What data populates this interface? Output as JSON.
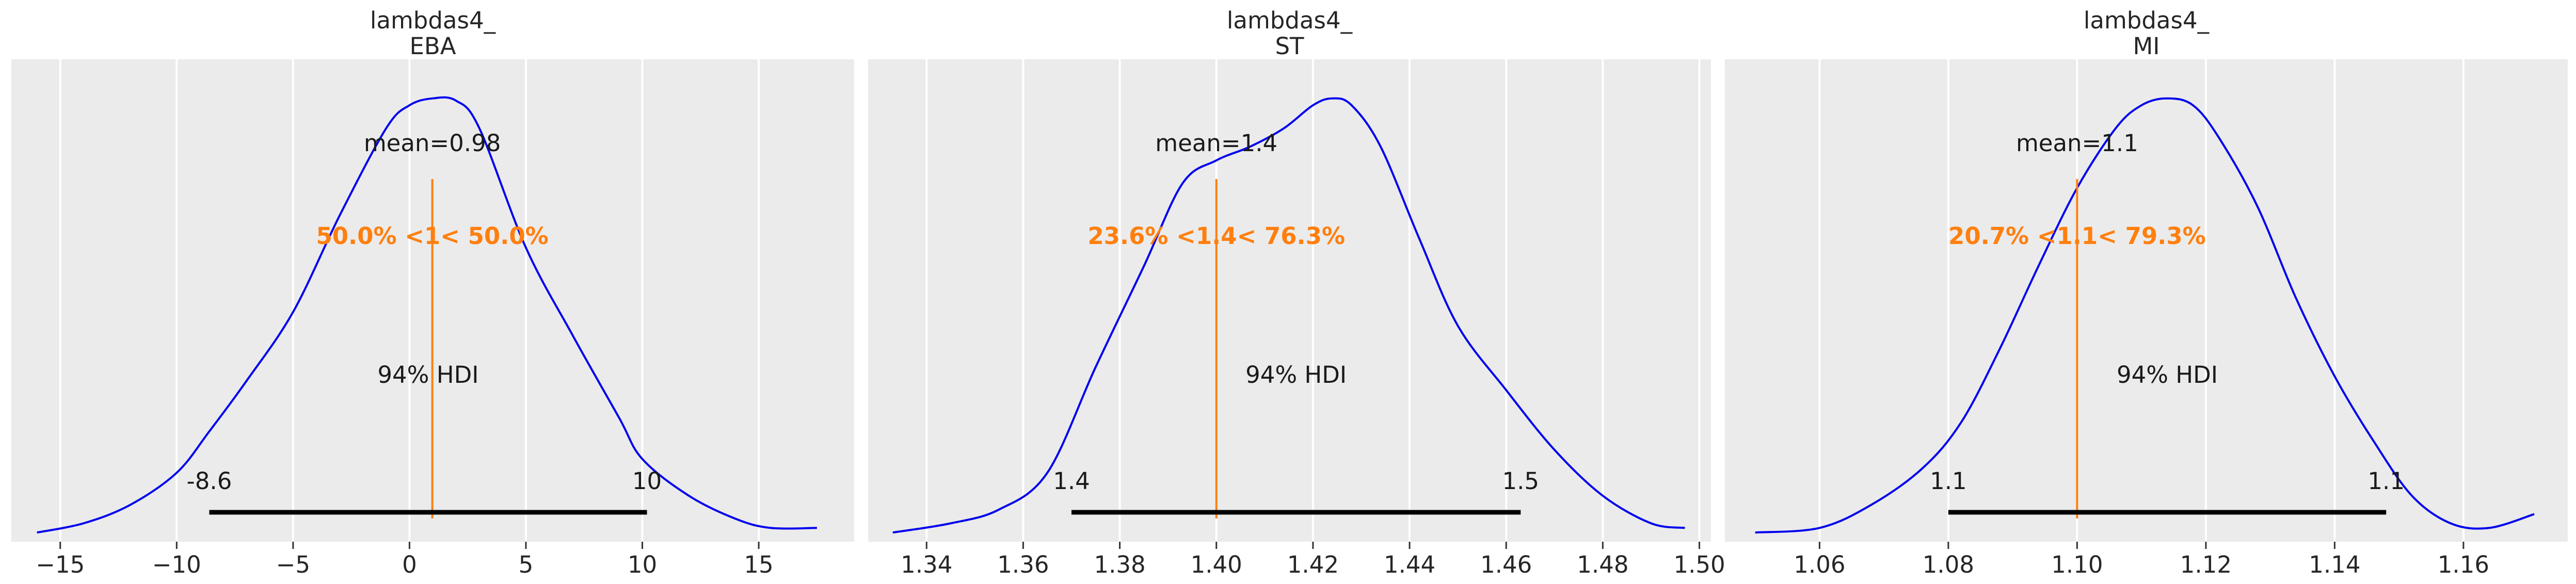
{
  "chart_data": [
    {
      "type": "line",
      "title_lines": [
        "lambdas4_",
        "EBA"
      ],
      "xticks": [
        "−15",
        "−10",
        "−5",
        "0",
        "5",
        "10",
        "15"
      ],
      "xtick_values": [
        -15,
        -10,
        -5,
        0,
        5,
        10,
        15
      ],
      "xlim": [
        -17.1,
        19.1
      ],
      "ymax": 1.05,
      "grid": true,
      "density": {
        "x": [
          -16,
          -14,
          -12,
          -10,
          -8.6,
          -7,
          -5,
          -3,
          -1,
          0,
          1,
          2,
          3,
          5,
          7,
          9,
          10,
          12,
          14,
          15.5,
          17.5
        ],
        "y": [
          0.02,
          0.04,
          0.08,
          0.15,
          0.24,
          0.35,
          0.5,
          0.71,
          0.9,
          0.95,
          0.965,
          0.96,
          0.9,
          0.64,
          0.45,
          0.27,
          0.18,
          0.1,
          0.05,
          0.03,
          0.03
        ]
      },
      "mean_label": "mean=0.98",
      "reference": {
        "value": 0.98,
        "label": "50.0% <1< 50.0%"
      },
      "hdi": {
        "label": "94% HDI",
        "low": -8.6,
        "high": 10.2,
        "low_label": "-8.6",
        "high_label": "10"
      },
      "colors": {
        "line": "#0000ee",
        "reference": "#ff7f0e",
        "hdi": "#000000"
      }
    },
    {
      "type": "line",
      "title_lines": [
        "lambdas4_",
        "ST"
      ],
      "xticks": [
        "1.34",
        "1.36",
        "1.38",
        "1.40",
        "1.42",
        "1.44",
        "1.46",
        "1.48",
        "1.50"
      ],
      "xtick_values": [
        1.34,
        1.36,
        1.38,
        1.4,
        1.42,
        1.44,
        1.46,
        1.48,
        1.5
      ],
      "xlim": [
        1.3279,
        1.5024
      ],
      "ymax": 1.05,
      "grid": true,
      "density": {
        "x": [
          1.333,
          1.345,
          1.355,
          1.365,
          1.375,
          1.385,
          1.393,
          1.4,
          1.407,
          1.414,
          1.42,
          1.424,
          1.428,
          1.434,
          1.442,
          1.45,
          1.46,
          1.47,
          1.48,
          1.49,
          1.497
        ],
        "y": [
          0.02,
          0.04,
          0.07,
          0.15,
          0.38,
          0.6,
          0.78,
          0.83,
          0.86,
          0.9,
          0.95,
          0.965,
          0.95,
          0.86,
          0.66,
          0.47,
          0.33,
          0.2,
          0.1,
          0.04,
          0.03
        ]
      },
      "mean_label": "mean=1.4",
      "reference": {
        "value": 1.4,
        "label": "23.6% <1.4< 76.3%"
      },
      "hdi": {
        "label": "94% HDI",
        "low": 1.37,
        "high": 1.463,
        "low_label": "1.4",
        "high_label": "1.5"
      },
      "colors": {
        "line": "#0000ee",
        "reference": "#ff7f0e",
        "hdi": "#000000"
      }
    },
    {
      "type": "line",
      "title_lines": [
        "lambdas4_",
        "MI"
      ],
      "xticks": [
        "1.06",
        "1.08",
        "1.10",
        "1.12",
        "1.14",
        "1.16"
      ],
      "xtick_values": [
        1.06,
        1.08,
        1.1,
        1.12,
        1.14,
        1.16
      ],
      "xlim": [
        1.0453,
        1.1762
      ],
      "ymax": 1.05,
      "grid": true,
      "density": {
        "x": [
          1.05,
          1.06,
          1.068,
          1.076,
          1.082,
          1.088,
          1.094,
          1.1,
          1.106,
          1.11,
          1.114,
          1.118,
          1.122,
          1.128,
          1.134,
          1.14,
          1.146,
          1.152,
          1.158,
          1.164,
          1.171
        ],
        "y": [
          0.02,
          0.03,
          0.08,
          0.16,
          0.26,
          0.42,
          0.6,
          0.77,
          0.9,
          0.95,
          0.965,
          0.95,
          0.88,
          0.73,
          0.53,
          0.36,
          0.22,
          0.1,
          0.04,
          0.03,
          0.06
        ]
      },
      "mean_label": "mean=1.1",
      "reference": {
        "value": 1.1,
        "label": "20.7% <1.1< 79.3%"
      },
      "hdi": {
        "label": "94% HDI",
        "low": 1.08,
        "high": 1.148,
        "low_label": "1.1",
        "high_label": "1.1"
      },
      "colors": {
        "line": "#0000ee",
        "reference": "#ff7f0e",
        "hdi": "#000000"
      }
    }
  ]
}
